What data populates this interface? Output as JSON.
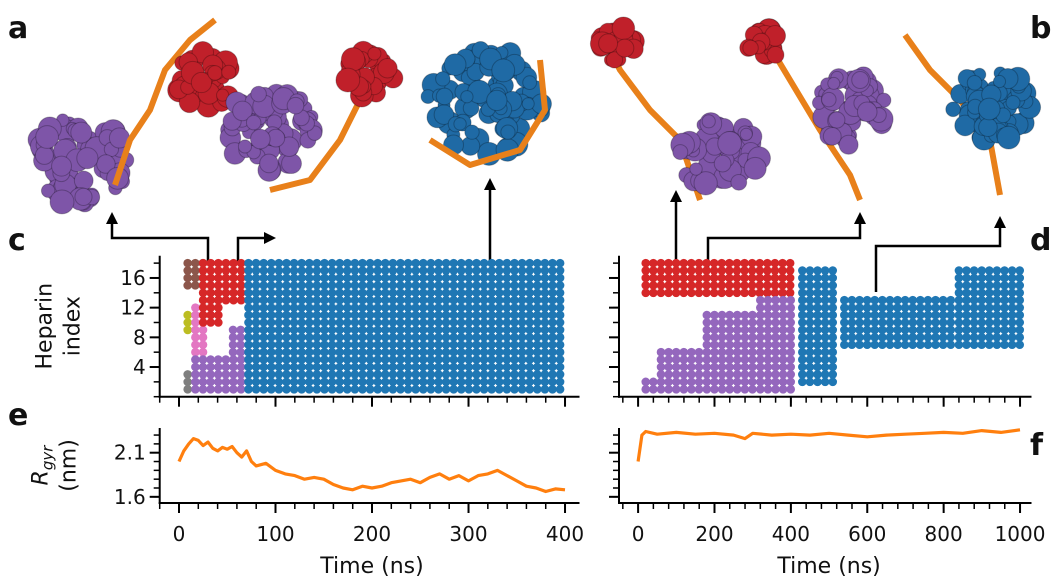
{
  "panel_letters": [
    "a",
    "b",
    "c",
    "d",
    "e",
    "f"
  ],
  "chart_data": [
    {
      "type": "occupancy",
      "xlim": [
        -20,
        415
      ],
      "ylim": [
        0,
        19
      ],
      "xticks": [
        0,
        100,
        200,
        300,
        400
      ],
      "xtick_labels": false,
      "yticks": [
        4,
        8,
        12,
        16
      ],
      "ytick_labels": true,
      "ylabel": [
        "Heparin",
        "index"
      ],
      "blocks": [
        {
          "color": "#7f7f7f",
          "time": [
            9,
            9
          ],
          "index": [
            1,
            3
          ]
        },
        {
          "color": "#bcbd22",
          "time": [
            9,
            9
          ],
          "index": [
            9,
            11
          ]
        },
        {
          "color": "#8c564b",
          "time": [
            9,
            25
          ],
          "index": [
            15,
            18
          ]
        },
        {
          "color": "#e377c2",
          "time": [
            17,
            25
          ],
          "index": [
            6,
            12
          ]
        },
        {
          "color": "#d62728",
          "time": [
            25,
            64
          ],
          "index": [
            13,
            18
          ]
        },
        {
          "color": "#d62728",
          "time": [
            25,
            48
          ],
          "index": [
            10,
            12
          ]
        },
        {
          "color": "#9467bd",
          "time": [
            17,
            64
          ],
          "index": [
            1,
            5
          ]
        },
        {
          "color": "#9467bd",
          "time": [
            56,
            64
          ],
          "index": [
            6,
            9
          ]
        },
        {
          "color": "#1f77b4",
          "time": [
            72,
            400
          ],
          "index": [
            1,
            18
          ]
        }
      ]
    },
    {
      "type": "occupancy",
      "xlim": [
        -50,
        1030
      ],
      "ylim": [
        0,
        19
      ],
      "xticks": [
        0,
        200,
        400,
        600,
        800,
        1000
      ],
      "xtick_labels": false,
      "yticks": [
        4,
        8,
        12,
        16
      ],
      "ytick_labels": false,
      "blocks": [
        {
          "color": "#d62728",
          "time": [
            20,
            410
          ],
          "index": [
            14,
            18
          ]
        },
        {
          "color": "#9467bd",
          "time": [
            20,
            40
          ],
          "index": [
            1,
            2
          ]
        },
        {
          "color": "#9467bd",
          "time": [
            60,
            160
          ],
          "index": [
            1,
            6
          ]
        },
        {
          "color": "#9467bd",
          "time": [
            180,
            300
          ],
          "index": [
            1,
            11
          ]
        },
        {
          "color": "#9467bd",
          "time": [
            320,
            410
          ],
          "index": [
            1,
            13
          ]
        },
        {
          "color": "#1f77b4",
          "time": [
            430,
            520
          ],
          "index": [
            2,
            17
          ]
        },
        {
          "color": "#1f77b4",
          "time": [
            540,
            820
          ],
          "index": [
            7,
            13
          ]
        },
        {
          "color": "#1f77b4",
          "time": [
            840,
            1000
          ],
          "index": [
            7,
            17
          ]
        }
      ]
    },
    {
      "type": "line",
      "xlim": [
        -20,
        415
      ],
      "ylim": [
        1.53,
        2.38
      ],
      "xticks": [
        0,
        100,
        200,
        300,
        400
      ],
      "xtick_labels": true,
      "yticks": [
        1.6,
        2.1
      ],
      "ytick_labels": true,
      "xlabel": "Time (ns)",
      "ylabel": {
        "symbol": "R",
        "subscript": "gyr",
        "unit": "(nm)"
      },
      "color": "#ff7f0e",
      "x": [
        0,
        5,
        10,
        15,
        20,
        25,
        30,
        35,
        40,
        45,
        50,
        55,
        60,
        65,
        70,
        75,
        80,
        90,
        100,
        110,
        120,
        130,
        140,
        150,
        160,
        170,
        180,
        190,
        200,
        210,
        220,
        230,
        240,
        250,
        260,
        270,
        280,
        290,
        300,
        310,
        320,
        330,
        340,
        350,
        360,
        370,
        380,
        390,
        400
      ],
      "values": [
        2.0,
        2.12,
        2.2,
        2.26,
        2.24,
        2.18,
        2.22,
        2.15,
        2.12,
        2.16,
        2.14,
        2.17,
        2.1,
        2.05,
        2.12,
        2.0,
        1.95,
        1.98,
        1.9,
        1.86,
        1.84,
        1.8,
        1.82,
        1.8,
        1.74,
        1.7,
        1.68,
        1.72,
        1.7,
        1.72,
        1.76,
        1.78,
        1.8,
        1.76,
        1.82,
        1.86,
        1.8,
        1.84,
        1.78,
        1.84,
        1.86,
        1.9,
        1.84,
        1.78,
        1.72,
        1.7,
        1.66,
        1.69,
        1.68
      ]
    },
    {
      "type": "line",
      "xlim": [
        -50,
        1030
      ],
      "ylim": [
        1.53,
        2.38
      ],
      "xticks": [
        0,
        200,
        400,
        600,
        800,
        1000
      ],
      "xtick_labels": true,
      "yticks": [
        1.6,
        2.1
      ],
      "ytick_labels": false,
      "xlabel": "Time (ns)",
      "color": "#ff7f0e",
      "x": [
        0,
        10,
        20,
        50,
        100,
        150,
        200,
        250,
        280,
        300,
        350,
        400,
        450,
        500,
        550,
        600,
        650,
        700,
        750,
        800,
        850,
        900,
        950,
        1000
      ],
      "values": [
        2.0,
        2.3,
        2.34,
        2.31,
        2.33,
        2.31,
        2.32,
        2.3,
        2.26,
        2.32,
        2.3,
        2.31,
        2.3,
        2.32,
        2.3,
        2.28,
        2.3,
        2.31,
        2.32,
        2.33,
        2.32,
        2.35,
        2.33,
        2.36
      ]
    }
  ]
}
